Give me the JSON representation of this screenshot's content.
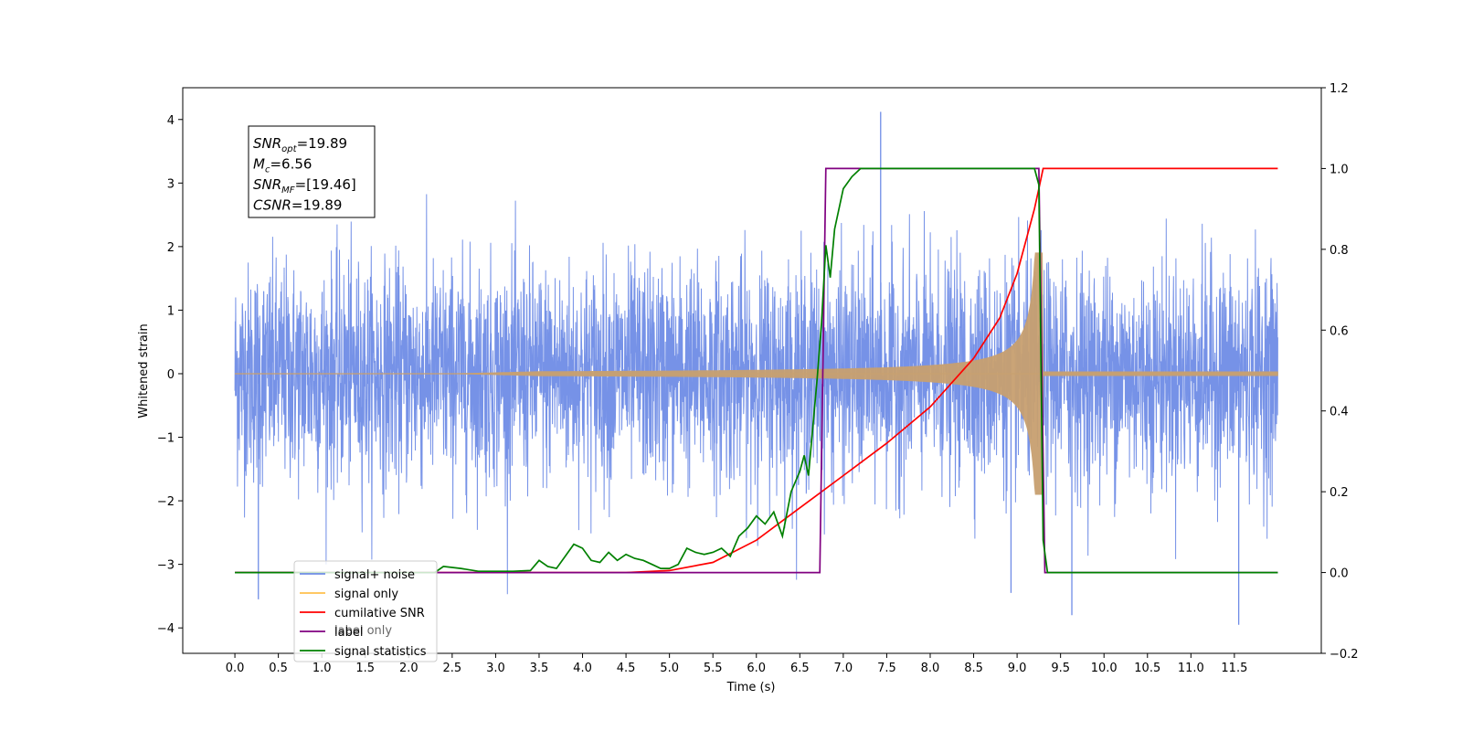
{
  "chart_data": {
    "type": "line",
    "xlabel": "Time (s)",
    "ylabel": "Whitened strain",
    "xlim": [
      -0.6,
      12.5
    ],
    "ylim": [
      -4.4,
      4.5
    ],
    "y2lim": [
      -0.2,
      1.2
    ],
    "x_ticks": [
      "0.0",
      "0.5",
      "1.0",
      "1.5",
      "2.0",
      "2.5",
      "3.0",
      "3.5",
      "4.0",
      "4.5",
      "5.0",
      "5.5",
      "6.0",
      "6.5",
      "7.0",
      "7.5",
      "8.0",
      "8.5",
      "9.0",
      "9.5",
      "10.0",
      "10.5",
      "11.0",
      "11.5"
    ],
    "y_ticks": [
      "4",
      "3",
      "2",
      "1",
      "0",
      "−1",
      "−2",
      "−3",
      "−4"
    ],
    "y2_ticks": [
      "1.2",
      "1.0",
      "0.8",
      "0.6",
      "0.4",
      "0.2",
      "0.0",
      "−0.2"
    ],
    "annotation": [
      {
        "base": "SNR",
        "sub": "opt",
        "rest": "=19.89"
      },
      {
        "base": "M",
        "sub": "c",
        "rest": "=6.56"
      },
      {
        "base": "SNR",
        "sub": "MF",
        "rest": "=[19.46]"
      },
      {
        "base": "CSNR",
        "sub": "",
        "rest": "=19.89"
      }
    ],
    "legend_position": "lower-left",
    "legend": [
      {
        "label": "signal+ noise",
        "color": "#6f8ce6"
      },
      {
        "label": "signal only",
        "color": "#ffc04d"
      },
      {
        "label": "cumilative SNR",
        "color": "#ff0000"
      },
      {
        "label": "label",
        "color": "#800080"
      },
      {
        "label": "signal statistics",
        "color": "#008000"
      }
    ],
    "hidden_label": "label only",
    "series": [
      {
        "name": "signal+ noise",
        "axis": "left",
        "color": "#6f8ce6",
        "x_range": [
          0,
          12.0
        ],
        "kind": "noise",
        "std": 0.75,
        "max": 4.12,
        "min": -3.95
      },
      {
        "name": "signal only",
        "axis": "left",
        "color": "#c8a070",
        "kind": "chirp",
        "x_range": [
          0,
          12.0
        ],
        "merger": 9.27,
        "peak_amplitude": 1.9
      },
      {
        "name": "cumilative SNR",
        "axis": "right",
        "color": "#ff0000",
        "x": [
          0.0,
          4.0,
          4.5,
          5.0,
          5.5,
          6.0,
          6.5,
          7.0,
          7.5,
          8.0,
          8.5,
          8.8,
          9.0,
          9.1,
          9.2,
          9.25,
          9.3,
          12.0
        ],
        "y": [
          0.0,
          0.0,
          0.0,
          0.005,
          0.025,
          0.08,
          0.16,
          0.24,
          0.32,
          0.41,
          0.53,
          0.63,
          0.74,
          0.82,
          0.9,
          0.95,
          1.0,
          1.0
        ]
      },
      {
        "name": "label",
        "axis": "right",
        "color": "#800080",
        "x": [
          0.0,
          6.73,
          6.8,
          9.25,
          9.32,
          12.0
        ],
        "y": [
          0.0,
          0.0,
          1.0,
          1.0,
          0.0,
          0.0
        ]
      },
      {
        "name": "signal statistics",
        "axis": "right",
        "color": "#008000",
        "x": [
          0.0,
          2.3,
          2.4,
          2.6,
          2.8,
          3.0,
          3.2,
          3.4,
          3.5,
          3.6,
          3.7,
          3.8,
          3.9,
          4.0,
          4.1,
          4.2,
          4.3,
          4.4,
          4.5,
          4.6,
          4.7,
          4.8,
          4.9,
          5.0,
          5.1,
          5.2,
          5.3,
          5.4,
          5.5,
          5.6,
          5.7,
          5.8,
          5.9,
          6.0,
          6.1,
          6.2,
          6.3,
          6.4,
          6.5,
          6.55,
          6.6,
          6.7,
          6.75,
          6.8,
          6.85,
          6.9,
          7.0,
          7.1,
          7.2,
          7.3,
          7.5,
          8.0,
          9.0,
          9.2,
          9.25,
          9.3,
          9.35,
          12.0
        ],
        "y": [
          0.0,
          0.0,
          0.015,
          0.01,
          0.003,
          0.003,
          0.003,
          0.005,
          0.03,
          0.015,
          0.01,
          0.04,
          0.07,
          0.06,
          0.03,
          0.025,
          0.05,
          0.03,
          0.045,
          0.035,
          0.03,
          0.02,
          0.01,
          0.01,
          0.02,
          0.06,
          0.05,
          0.045,
          0.05,
          0.06,
          0.04,
          0.09,
          0.11,
          0.14,
          0.12,
          0.15,
          0.09,
          0.2,
          0.25,
          0.29,
          0.24,
          0.48,
          0.62,
          0.81,
          0.73,
          0.85,
          0.95,
          0.98,
          1.0,
          1.0,
          1.0,
          1.0,
          1.0,
          1.0,
          0.96,
          0.08,
          0.0,
          0.0
        ]
      }
    ]
  }
}
